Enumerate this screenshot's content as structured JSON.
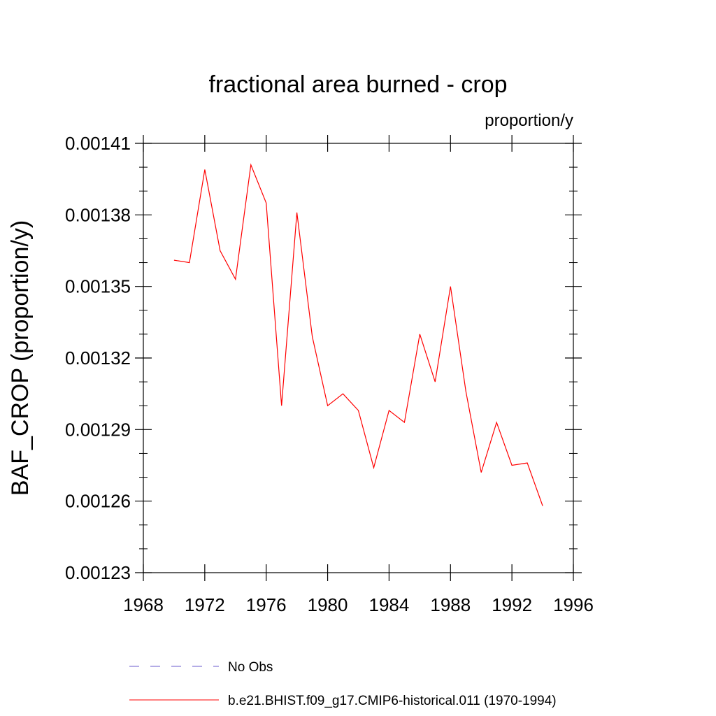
{
  "chart_data": {
    "type": "line",
    "title": "fractional area burned - crop",
    "subtitle": "proportion/y",
    "xlabel": "",
    "ylabel": "BAF_CROP  (proportion/y)",
    "xlim": [
      1968,
      1996
    ],
    "ylim": [
      0.00123,
      0.00141
    ],
    "xticks": [
      1968,
      1972,
      1976,
      1980,
      1984,
      1988,
      1992,
      1996
    ],
    "xtick_labels": [
      "1968",
      "1972",
      "1976",
      "1980",
      "1984",
      "1988",
      "1992",
      "1996"
    ],
    "yticks": [
      0.00123,
      0.00126,
      0.00129,
      0.00132,
      0.00135,
      0.00138,
      0.00141
    ],
    "ytick_labels": [
      "0.00123",
      "0.00126",
      "0.00129",
      "0.00132",
      "0.00135",
      "0.00138",
      "0.00141"
    ],
    "grid": false,
    "legend_position": "bottom",
    "series": [
      {
        "name": "No Obs",
        "color": "#6a5acd",
        "dashed": true,
        "x": [],
        "y": []
      },
      {
        "name": "b.e21.BHIST.f09_g17.CMIP6-historical.011 (1970-1994)",
        "color": "#ff0000",
        "dashed": false,
        "x": [
          1970,
          1971,
          1972,
          1973,
          1974,
          1975,
          1976,
          1977,
          1978,
          1979,
          1980,
          1981,
          1982,
          1983,
          1984,
          1985,
          1986,
          1987,
          1988,
          1989,
          1990,
          1991,
          1992,
          1993,
          1994
        ],
        "y": [
          0.001361,
          0.00136,
          0.001399,
          0.001365,
          0.001353,
          0.001401,
          0.001385,
          0.0013,
          0.001381,
          0.001329,
          0.0013,
          0.001305,
          0.001298,
          0.001274,
          0.001298,
          0.001293,
          0.00133,
          0.00131,
          0.00135,
          0.001306,
          0.001272,
          0.001293,
          0.001275,
          0.001276,
          0.001258
        ]
      }
    ]
  }
}
